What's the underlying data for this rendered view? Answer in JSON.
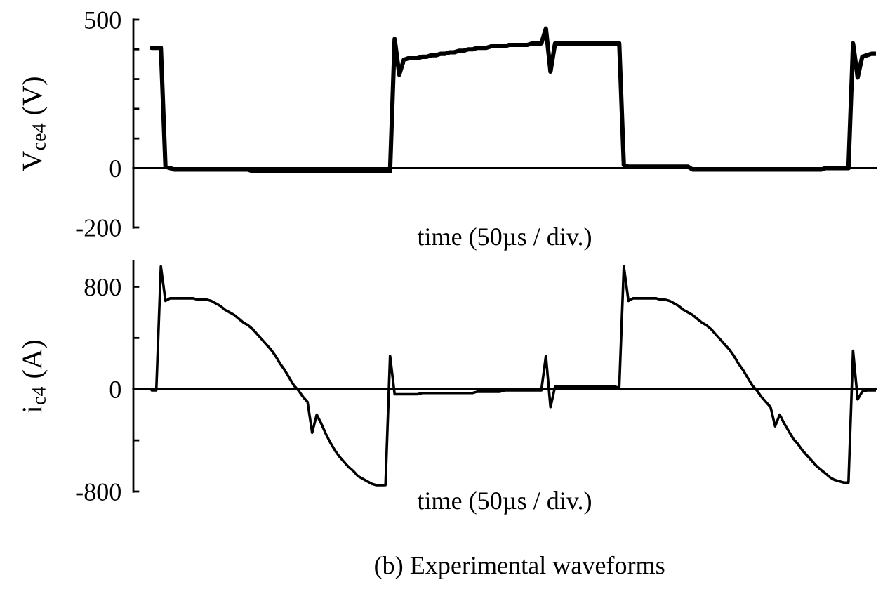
{
  "chart_data": [
    {
      "type": "line",
      "ylabel": "V$_{ce4}$ (V)",
      "xlabel": "time (50µs / div.)",
      "color": "#000000",
      "categories": [
        null,
        null,
        null,
        null,
        null,
        null,
        null,
        null,
        null,
        null,
        null,
        null,
        null,
        null,
        null,
        null,
        null,
        null,
        null,
        null,
        null,
        null,
        null,
        null,
        null,
        null,
        null,
        null,
        null,
        null,
        null,
        null,
        null,
        null,
        null,
        null,
        null,
        null,
        null,
        null,
        null,
        null,
        null,
        null,
        null,
        null,
        null,
        null,
        null,
        null,
        null,
        null,
        null,
        null,
        null,
        null,
        null,
        null,
        null,
        null,
        null,
        null,
        null,
        null,
        null,
        null,
        null,
        null,
        null,
        null,
        null,
        null,
        null,
        null,
        null,
        null,
        null,
        null,
        null,
        null,
        null,
        null,
        null,
        null,
        null,
        null,
        null,
        null,
        null,
        null,
        null,
        null,
        null,
        null,
        null,
        null,
        null,
        null,
        null,
        null,
        null,
        null,
        null,
        null,
        null,
        null,
        null,
        null,
        null,
        null,
        null,
        null,
        null,
        null,
        null,
        null,
        null,
        null,
        null,
        null,
        null,
        null,
        null,
        null,
        null,
        null,
        null,
        null,
        null,
        null,
        null,
        null,
        null,
        null,
        null,
        null,
        null,
        null,
        null,
        null,
        null,
        null,
        null,
        null,
        null,
        null,
        null,
        null,
        null,
        null,
        null,
        null,
        null,
        null,
        null,
        null,
        null,
        null,
        null,
        null,
        null,
        null,
        null
      ],
      "values": [
        null,
        null,
        null,
        null,
        405,
        405,
        405,
        5,
        0,
        -5,
        -5,
        -5,
        -5,
        -5,
        -5,
        -5,
        -5,
        -5,
        -5,
        -5,
        -5,
        -5,
        -5,
        -5,
        -5,
        -5,
        -10,
        -10,
        -10,
        -10,
        -10,
        -10,
        -10,
        -10,
        -10,
        -10,
        -10,
        -10,
        -10,
        -10,
        -10,
        -10,
        -10,
        -10,
        -10,
        -10,
        -10,
        -10,
        -10,
        -10,
        -10,
        -10,
        -10,
        -10,
        -10,
        -10,
        -10,
        435,
        315,
        365,
        370,
        370,
        370,
        375,
        375,
        380,
        380,
        385,
        385,
        390,
        390,
        395,
        395,
        400,
        400,
        405,
        405,
        405,
        410,
        410,
        410,
        410,
        415,
        415,
        415,
        415,
        415,
        420,
        420,
        420,
        470,
        325,
        420,
        420,
        420,
        420,
        420,
        420,
        420,
        420,
        420,
        420,
        420,
        420,
        420,
        420,
        420,
        10,
        5,
        5,
        5,
        5,
        5,
        5,
        5,
        5,
        5,
        5,
        5,
        5,
        5,
        5,
        -5,
        -5,
        -5,
        -5,
        -5,
        -5,
        -5,
        -5,
        -5,
        -5,
        -5,
        -5,
        -5,
        -5,
        -5,
        -5,
        -5,
        -5,
        -5,
        -5,
        -5,
        -5,
        -5,
        -5,
        -5,
        -5,
        -5,
        -5,
        -5,
        0,
        0,
        0,
        0,
        0,
        0,
        420,
        305,
        375,
        380,
        385,
        385
      ],
      "ylim": [
        -200,
        500
      ],
      "yticks": [
        -200,
        0,
        {
          "value": 100,
          "label": null
        },
        {
          "value": 200,
          "label": null
        },
        {
          "value": 300,
          "label": null
        },
        {
          "value": 400,
          "label": null
        },
        500
      ],
      "tick_labels": "y"
    },
    {
      "type": "line",
      "ylabel": "i$_{c4}$ (A)",
      "xlabel": "time (50µs / div.)",
      "color": "#000000",
      "annotations": [
        "(b) Experimental waveforms"
      ],
      "categories": [
        null,
        null,
        null,
        null,
        null,
        null,
        null,
        null,
        null,
        null,
        null,
        null,
        null,
        null,
        null,
        null,
        null,
        null,
        null,
        null,
        null,
        null,
        null,
        null,
        null,
        null,
        null,
        null,
        null,
        null,
        null,
        null,
        null,
        null,
        null,
        null,
        null,
        null,
        null,
        null,
        null,
        null,
        null,
        null,
        null,
        null,
        null,
        null,
        null,
        null,
        null,
        null,
        null,
        null,
        null,
        null,
        null,
        null,
        null,
        null,
        null,
        null,
        null,
        null,
        null,
        null,
        null,
        null,
        null,
        null,
        null,
        null,
        null,
        null,
        null,
        null,
        null,
        null,
        null,
        null,
        null,
        null,
        null,
        null,
        null,
        null,
        null,
        null,
        null,
        null,
        null,
        null,
        null,
        null,
        null,
        null,
        null,
        null,
        null,
        null,
        null,
        null,
        null,
        null,
        null,
        null,
        null,
        null,
        null,
        null,
        null,
        null,
        null,
        null,
        null,
        null,
        null,
        null,
        null,
        null,
        null,
        null,
        null,
        null,
        null,
        null,
        null,
        null,
        null,
        null,
        null,
        null,
        null,
        null,
        null,
        null,
        null,
        null,
        null,
        null,
        null,
        null,
        null,
        null,
        null,
        null,
        null,
        null,
        null,
        null,
        null,
        null,
        null,
        null,
        null,
        null,
        null,
        null,
        null,
        null,
        null,
        null,
        null
      ],
      "values": [
        null,
        null,
        null,
        null,
        -10,
        -10,
        960,
        690,
        710,
        710,
        710,
        710,
        710,
        710,
        700,
        700,
        700,
        690,
        670,
        650,
        620,
        600,
        580,
        550,
        520,
        500,
        470,
        430,
        390,
        350,
        310,
        260,
        200,
        150,
        90,
        30,
        -10,
        -60,
        -100,
        -340,
        -200,
        -270,
        -350,
        -420,
        -480,
        -530,
        -570,
        -610,
        -640,
        -680,
        -700,
        -720,
        -740,
        -750,
        -750,
        -750,
        260,
        -40,
        -40,
        -40,
        -40,
        -40,
        -40,
        -30,
        -30,
        -30,
        -30,
        -30,
        -30,
        -30,
        -30,
        -30,
        -30,
        -30,
        -30,
        -20,
        -20,
        -20,
        -20,
        -20,
        -20,
        -10,
        -10,
        -10,
        -10,
        -10,
        -10,
        -10,
        -10,
        -10,
        260,
        -140,
        20,
        20,
        20,
        20,
        20,
        20,
        20,
        20,
        20,
        20,
        20,
        20,
        20,
        20,
        10,
        960,
        690,
        710,
        710,
        710,
        710,
        710,
        710,
        700,
        700,
        690,
        670,
        650,
        620,
        600,
        580,
        550,
        520,
        500,
        470,
        430,
        390,
        350,
        310,
        260,
        200,
        150,
        90,
        30,
        -10,
        -60,
        -100,
        -140,
        -290,
        -200,
        -270,
        -330,
        -390,
        -430,
        -480,
        -520,
        -560,
        -600,
        -630,
        -660,
        -690,
        -710,
        -720,
        -730,
        -730,
        300,
        -80,
        -20,
        -10,
        -10,
        -10
      ],
      "ylim": [
        -800,
        1000
      ],
      "yticks": [
        -800,
        {
          "value": -400,
          "label": null
        },
        0,
        {
          "value": 400,
          "label": null
        },
        800
      ],
      "tick_labels": "y"
    }
  ]
}
